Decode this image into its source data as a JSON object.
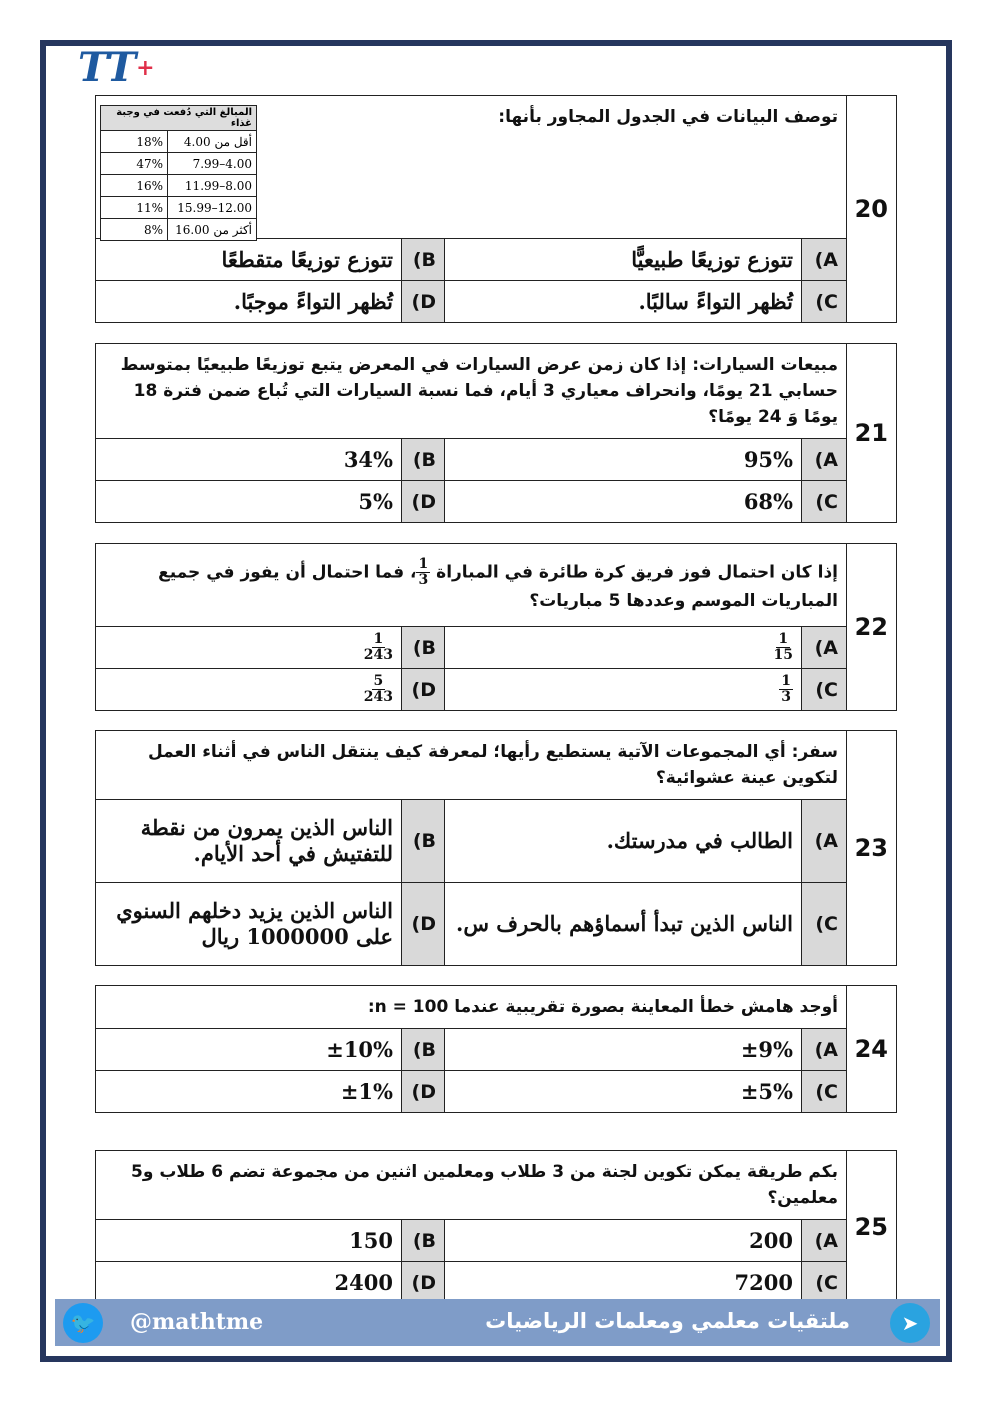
{
  "logo": {
    "text": "TT",
    "plus": "+"
  },
  "questions": [
    {
      "number": "20",
      "stem": "توصف البيانات في الجدول المجاور بأنها:",
      "options": {
        "A": "تتوزع توزيعًا طبيعيًّا",
        "B": "تتوزع توزيعًا متقطعًا",
        "C": "تُظهر التواءً سالبًا.",
        "D": "تُظهر التواءً موجبًا."
      },
      "table": {
        "header": "المبالغ التي دُفعت في وجبة غذاء",
        "rows": [
          [
            "أقل من 4.00",
            "18%"
          ],
          [
            "4.00–7.99",
            "47%"
          ],
          [
            "8.00–11.99",
            "16%"
          ],
          [
            "12.00–15.99",
            "11%"
          ],
          [
            "أكثر من 16.00",
            "8%"
          ]
        ]
      }
    },
    {
      "number": "21",
      "stem": "مبيعات السيارات: إذا كان زمن عرض السيارات في المعرض يتبع توزيعًا طبيعيًا بمتوسط حسابي 21 يومًا، وانحراف معياري 3 أيام، فما نسبة السيارات التي تُباع ضمن فترة 18 يومًا وَ 24 يومًا؟",
      "options": {
        "A": "95%",
        "B": "34%",
        "C": "68%",
        "D": "5%"
      }
    },
    {
      "number": "22",
      "stem_before": "إذا كان احتمال فوز فريق كرة طائرة في المباراة ",
      "stem_frac": [
        "1",
        "3"
      ],
      "stem_after": "، فما احتمال أن يفوز في جميع المباريات الموسم وعددها 5 مباريات؟",
      "options": {
        "A": [
          "1",
          "15"
        ],
        "B": [
          "1",
          "243"
        ],
        "C": [
          "1",
          "3"
        ],
        "D": [
          "5",
          "243"
        ]
      }
    },
    {
      "number": "23",
      "stem": "سفر: أي المجموعات الآتية يستطيع رأيها؛ لمعرفة كيف ينتقل الناس في أثناء العمل لتكوين عينة عشوائية؟",
      "options": {
        "A": "الطالب في مدرستك.",
        "B": "الناس الذين يمرون من نقطة للتفتيش في أحد الأيام.",
        "C": "الناس الذين تبدأ أسماؤهم بالحرف س.",
        "D": "الناس الذين يزيد دخلهم السنوي على 1000000 ريال"
      }
    },
    {
      "number": "24",
      "stem": "أوجد هامش خطأ المعاينة بصورة تقريبية عندما n = 100:",
      "options": {
        "A": "±9%",
        "B": "±10%",
        "C": "±5%",
        "D": "±1%"
      }
    },
    {
      "number": "25",
      "stem": "بكم طريقة يمكن تكوين لجنة من 3 طلاب ومعلمين اثنين من مجموعة تضم 6 طلاب و5 معلمين؟",
      "options": {
        "A": "200",
        "B": "150",
        "C": "7200",
        "D": "2400"
      }
    }
  ],
  "labels": {
    "A": "(A",
    "B": "(B",
    "C": "(C",
    "D": "(D"
  },
  "footer": {
    "handle": "@mathtme",
    "title": "ملتقيات معلمي ومعلمات الرياضيات",
    "bg": "#7f9cc8"
  }
}
